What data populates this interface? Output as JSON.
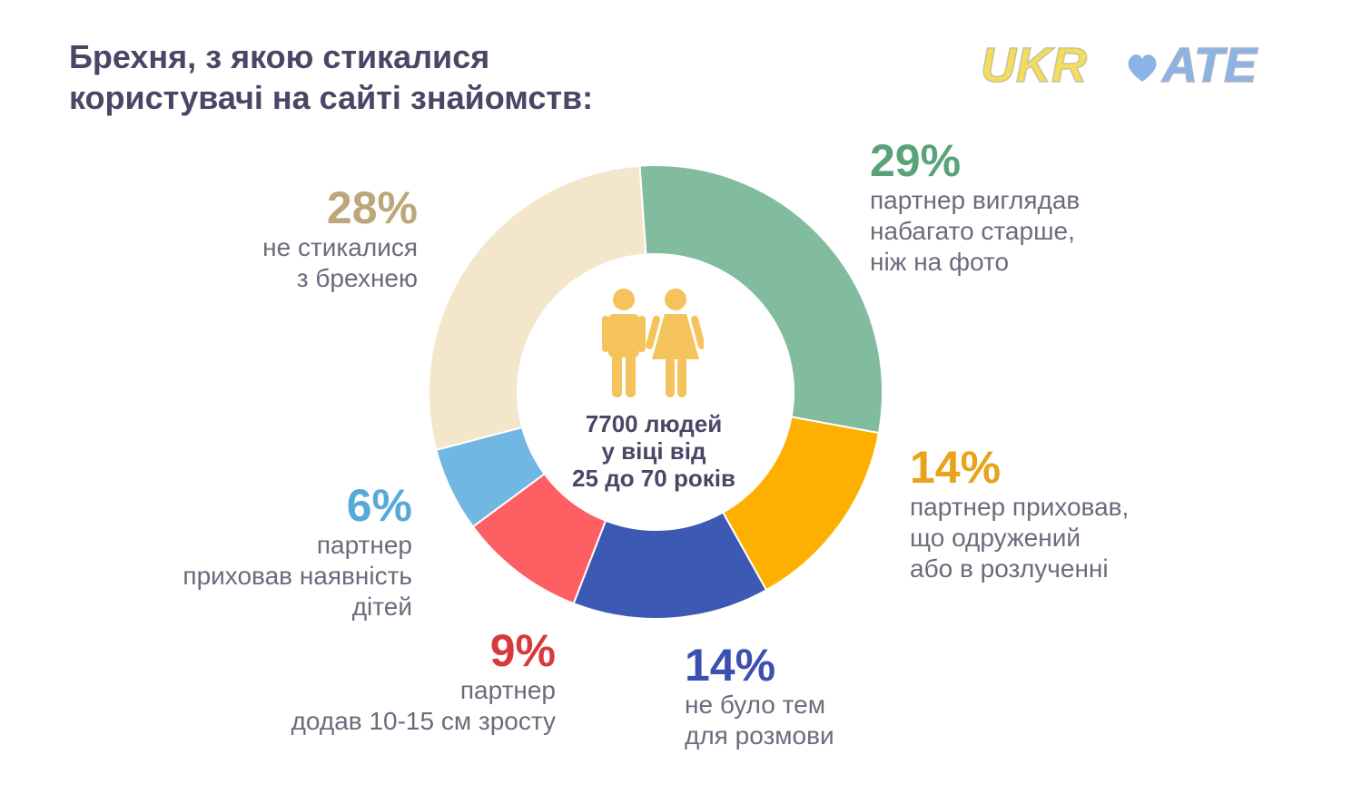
{
  "title": "Брехня, з якою стикалися\nкористувачі на сайті знайомств:",
  "logo": {
    "text": "UKRDATE",
    "part1": "UKR",
    "part2": "ATE",
    "heart_icon": "heart-icon",
    "color_main": "#f5dc5a",
    "color_blue": "#8ab4e6"
  },
  "center": {
    "icon": "people-icon",
    "text": "7700 людей\nу віці від\n25 до 70 років"
  },
  "chart_data": {
    "type": "donut",
    "title": "Брехня, з якою стикалися користувачі на сайті знайомств:",
    "categories": [
      "партнер виглядав набагато старше, ніж на фото",
      "партнер приховав, що одружений або в розлученні",
      "не було тем для розмови",
      "партнер додав 10-15 см зросту",
      "партнер приховав наявність дітей",
      "не стикалися з брехнею"
    ],
    "values": [
      29,
      14,
      14,
      9,
      6,
      28
    ],
    "pct_labels": [
      "29%",
      "14%",
      "14%",
      "9%",
      "6%",
      "28%"
    ],
    "colors": [
      "#81bc9f",
      "#feb000",
      "#3c5ab4",
      "#fe5f63",
      "#71b7e3",
      "#f4e6cb"
    ],
    "label_colors": [
      "#5aa27a",
      "#e7a41a",
      "#3e4fb2",
      "#d7393d",
      "#57a9d6",
      "#bba779"
    ],
    "texts": [
      "партнер виглядав\nнабагато старше,\nніж на фото",
      "партнер приховав,\nщо одружений\nабо в розлученні",
      "не було тем\nдля розмови",
      "партнер\nдодав 10-15 см зросту",
      "партнер\nприховав наявність\nдітей",
      "не стикалися\nз брехнею"
    ]
  }
}
